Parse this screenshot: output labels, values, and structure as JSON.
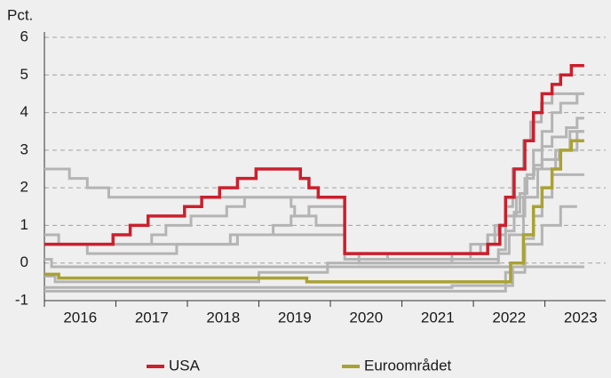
{
  "chart_data": {
    "type": "step",
    "ylabel": "Pct.",
    "xlim": [
      2016,
      2023.85
    ],
    "xticks": [
      2016,
      2017,
      2018,
      2019,
      2020,
      2021,
      2022,
      2023
    ],
    "ylim": [
      -1,
      6
    ],
    "yticks": [
      -1,
      0,
      1,
      2,
      3,
      4,
      5,
      6
    ],
    "grid": true,
    "legend": "bottom",
    "series": [
      {
        "color": "#b4b4b4",
        "x": [
          2016,
          2016.2,
          2018.7,
          2019.2,
          2019.45,
          2019.7,
          2020.2,
          2020.4,
          2021.7,
          2021.96,
          2022.2,
          2022.45,
          2022.72,
          2022.84,
          2022.96,
          2023.2,
          2023.45,
          2023.55
        ],
        "values": [
          0.75,
          0.5,
          0.75,
          1.0,
          1.25,
          1.5,
          0.25,
          0,
          0.25,
          0.5,
          0.75,
          1.25,
          2.25,
          2.5,
          2.75,
          3.0,
          3.5,
          3.5
        ]
      },
      {
        "color": "#b4b4b4",
        "x": [
          2016,
          2016.35,
          2016.6,
          2016.9,
          2019.45,
          2019.5,
          2019.8,
          2020.2,
          2020.8,
          2022.35,
          2022.45,
          2022.57,
          2022.65,
          2022.75,
          2022.85,
          2022.96,
          2023.1,
          2023.3,
          2023.45,
          2023.55
        ],
        "values": [
          2.5,
          2.25,
          2.0,
          1.75,
          1.5,
          1.25,
          1.0,
          0.25,
          0.1,
          0.35,
          0.85,
          1.35,
          1.85,
          2.35,
          2.6,
          3.1,
          3.35,
          3.6,
          3.85,
          3.85
        ]
      },
      {
        "color": "#b4b4b4",
        "x": [
          2016,
          2016.6,
          2017.85,
          2018.6,
          2020.2,
          2021.96,
          2022.1,
          2022.2,
          2022.35,
          2022.45,
          2022.6,
          2022.72,
          2022.84,
          2022.96,
          2023.1,
          2023.22,
          2023.45,
          2023.55
        ],
        "values": [
          0.5,
          0.25,
          0.5,
          0.75,
          0.1,
          0.25,
          0.5,
          0.75,
          1.0,
          1.25,
          1.75,
          2.25,
          3.0,
          3.5,
          4.0,
          4.25,
          4.5,
          4.5
        ]
      },
      {
        "color": "#b4b4b4",
        "x": [
          2016,
          2017.5,
          2017.7,
          2018.05,
          2018.55,
          2018.8,
          2020.2,
          2022.2,
          2022.3,
          2022.45,
          2022.55,
          2022.7,
          2022.8,
          2022.95,
          2023.1,
          2023.55
        ],
        "values": [
          0.5,
          0.75,
          1.0,
          1.25,
          1.5,
          1.75,
          0.25,
          0.5,
          1.0,
          1.5,
          2.5,
          3.25,
          3.75,
          4.25,
          4.5,
          4.5
        ]
      },
      {
        "color": "#b4b4b4",
        "x": [
          2016,
          2016.15,
          2019.0,
          2019.96,
          2022.35,
          2022.5,
          2022.7,
          2022.9,
          2023.15,
          2023.35,
          2023.55
        ],
        "values": [
          -0.35,
          -0.5,
          -0.25,
          0,
          0.25,
          0.75,
          1.75,
          2.5,
          3.0,
          3.5,
          3.5
        ]
      },
      {
        "color": "#b4b4b4",
        "x": [
          2016,
          2022.45,
          2022.72,
          2022.96,
          2023.22,
          2023.45
        ],
        "values": [
          -0.75,
          -0.25,
          0.5,
          1.0,
          1.5,
          1.5
        ]
      },
      {
        "color": "#b4b4b4",
        "x": [
          2016,
          2016.1,
          2023.55
        ],
        "values": [
          0.1,
          -0.1,
          -0.1
        ]
      },
      {
        "color": "#b4b4b4",
        "x": [
          2016,
          2021.7,
          2022.55,
          2022.7,
          2022.84,
          2022.96,
          2023.1,
          2023.55
        ],
        "values": [
          -0.65,
          -0.6,
          -0.1,
          0.65,
          1.25,
          1.75,
          2.35,
          2.35
        ]
      },
      {
        "name": "Euroområdet",
        "color": "#a9a232",
        "x": [
          2016,
          2016.2,
          2019.67,
          2022.52,
          2022.7,
          2022.84,
          2022.96,
          2023.1,
          2023.22,
          2023.37,
          2023.55
        ],
        "values": [
          -0.3,
          -0.4,
          -0.5,
          0,
          0.75,
          1.5,
          2.0,
          2.5,
          3.0,
          3.25,
          3.25
        ]
      },
      {
        "name": "USA",
        "color": "#cc1f2c",
        "x": [
          2016,
          2016.96,
          2017.2,
          2017.45,
          2017.96,
          2018.2,
          2018.45,
          2018.7,
          2018.96,
          2019.58,
          2019.7,
          2019.83,
          2020.2,
          2022.2,
          2022.37,
          2022.45,
          2022.57,
          2022.72,
          2022.84,
          2022.96,
          2023.1,
          2023.22,
          2023.37,
          2023.55
        ],
        "values": [
          0.5,
          0.75,
          1.0,
          1.25,
          1.5,
          1.75,
          2.0,
          2.25,
          2.5,
          2.25,
          2.0,
          1.75,
          0.25,
          0.5,
          1.0,
          1.75,
          2.5,
          3.25,
          4.0,
          4.5,
          4.75,
          5.0,
          5.25,
          5.25
        ]
      }
    ]
  }
}
